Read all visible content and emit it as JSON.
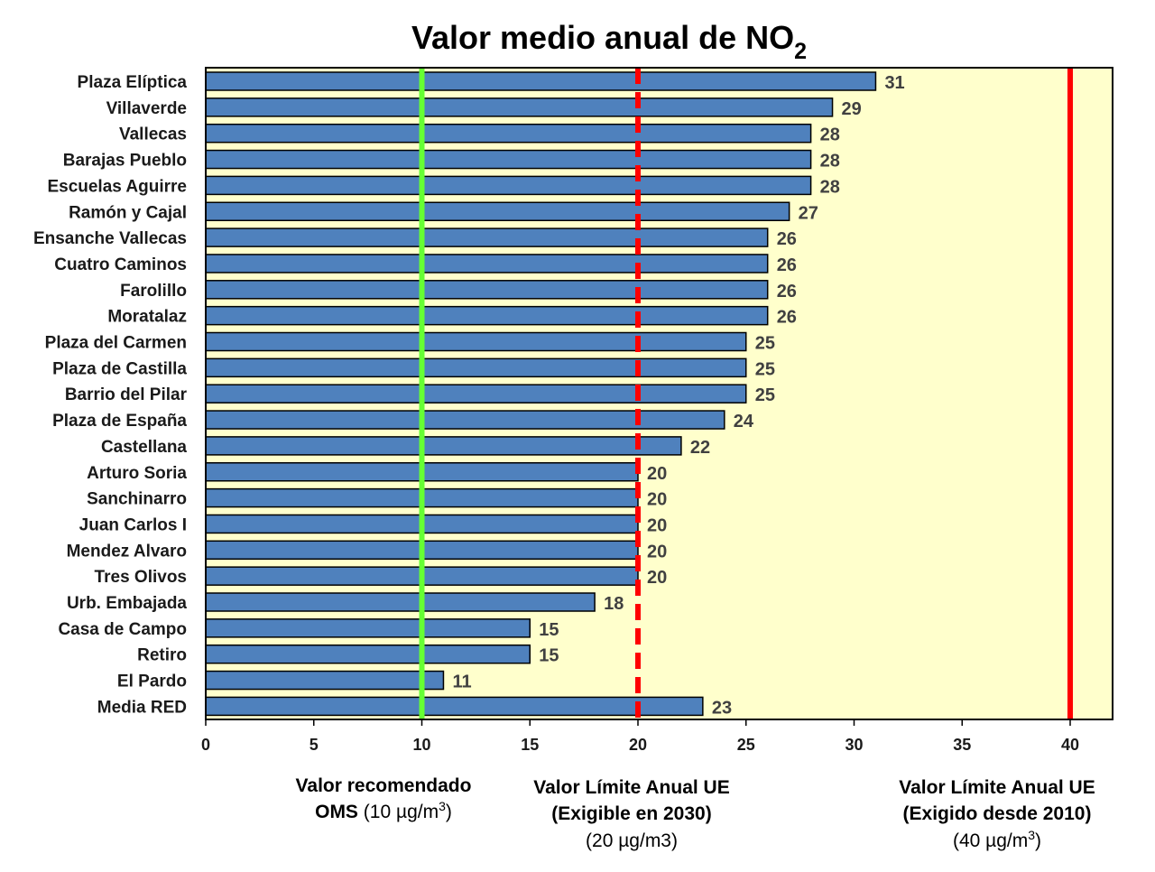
{
  "chart_data": {
    "type": "bar",
    "orientation": "horizontal",
    "title": {
      "main": "Valor medio anual de NO",
      "subscript": "2"
    },
    "categories": [
      "Plaza Elíptica",
      "Villaverde",
      "Vallecas",
      "Barajas Pueblo",
      "Escuelas Aguirre",
      "Ramón y Cajal",
      "Ensanche Vallecas",
      "Cuatro Caminos",
      "Farolillo",
      "Moratalaz",
      "Plaza del Carmen",
      "Plaza de Castilla",
      "Barrio del Pilar",
      "Plaza de España",
      "Castellana",
      "Arturo Soria",
      "Sanchinarro",
      "Juan Carlos I",
      "Mendez Alvaro",
      "Tres Olivos",
      "Urb. Embajada",
      "Casa de Campo",
      "Retiro",
      "El Pardo",
      "Media RED"
    ],
    "values": [
      31,
      29,
      28,
      28,
      28,
      27,
      26,
      26,
      26,
      26,
      25,
      25,
      25,
      24,
      22,
      20,
      20,
      20,
      20,
      20,
      18,
      15,
      15,
      11,
      23
    ],
    "value_labels": [
      "31",
      "29",
      "28",
      "28",
      "28",
      "27",
      "26",
      "26",
      "26",
      "26",
      "25",
      "25",
      "25",
      "24",
      "22",
      "20",
      "20",
      "20",
      "20",
      "20",
      "18",
      "15",
      "15",
      "11",
      "23"
    ],
    "xlim": [
      0,
      42
    ],
    "xticks": [
      0,
      5,
      10,
      15,
      20,
      25,
      30,
      35,
      40
    ],
    "xtick_labels": [
      "0",
      "5",
      "10",
      "15",
      "20",
      "25",
      "30",
      "35",
      "40"
    ],
    "grid": false,
    "legend": "none",
    "colors": {
      "bar": "#4f81bd",
      "bar_edge": "#000000",
      "plot_background": "#ffffcc",
      "value_text": "#404040"
    },
    "reference_lines": [
      {
        "value": 10,
        "color": "#66ff33",
        "style": "solid",
        "label_lines": [
          [
            {
              "text": "Valor recomendado",
              "bold": true
            }
          ],
          [
            {
              "text": "OMS",
              "bold": true
            },
            {
              "text": "  (10 µg/m",
              "bold": false
            },
            {
              "text": "3",
              "bold": false,
              "sup": true
            },
            {
              "text": ")",
              "bold": false
            }
          ]
        ]
      },
      {
        "value": 20,
        "color": "#ff0000",
        "style": "dashed",
        "label_lines": [
          [
            {
              "text": "Valor Límite Anual UE",
              "bold": true
            }
          ],
          [
            {
              "text": "(Exigible en 2030)",
              "bold": true
            }
          ],
          [
            {
              "text": "(20 µg/m3)",
              "bold": false
            }
          ]
        ]
      },
      {
        "value": 40,
        "color": "#ff0000",
        "style": "solid",
        "label_lines": [
          [
            {
              "text": "Valor Límite Anual UE",
              "bold": true
            }
          ],
          [
            {
              "text": "(Exigido desde 2010)",
              "bold": true
            }
          ],
          [
            {
              "text": "(40 µg/m",
              "bold": false
            },
            {
              "text": "3",
              "bold": false,
              "sup": true
            },
            {
              "text": ")",
              "bold": false
            }
          ]
        ]
      }
    ]
  }
}
